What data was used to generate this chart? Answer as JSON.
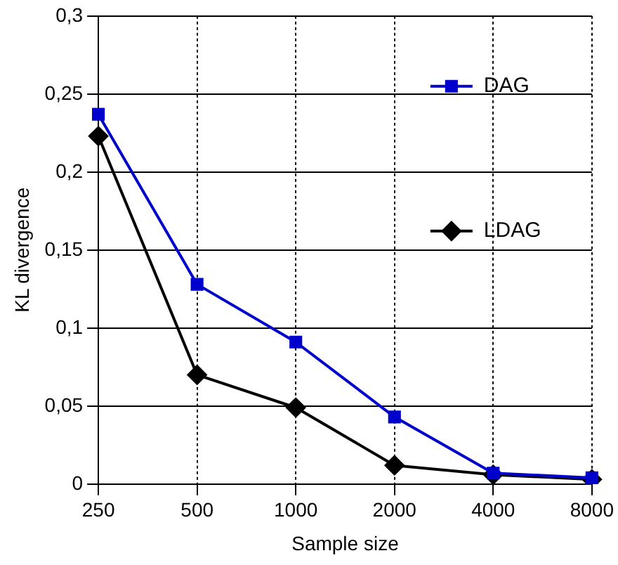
{
  "chart_data": {
    "type": "line",
    "xlabel": "Sample size",
    "ylabel": "KL divergence",
    "categories": [
      "250",
      "500",
      "1000",
      "2000",
      "4000",
      "8000"
    ],
    "series": [
      {
        "name": "DAG",
        "color": "#0000cc",
        "marker": "square",
        "values": [
          0.237,
          0.128,
          0.091,
          0.043,
          0.007,
          0.004
        ]
      },
      {
        "name": "LDAG",
        "color": "#000000",
        "marker": "diamond",
        "values": [
          0.223,
          0.07,
          0.049,
          0.012,
          0.006,
          0.003
        ]
      }
    ],
    "ylim": [
      0,
      0.3
    ],
    "yticks": [
      0,
      {
        "value": 0.05,
        "label": "0,05"
      },
      {
        "value": 0.1,
        "label": "0,1"
      },
      {
        "value": 0.15,
        "label": "0,15"
      },
      {
        "value": 0.2,
        "label": "0,2"
      },
      {
        "value": 0.25,
        "label": "0,25"
      },
      {
        "value": 0.3,
        "label": "0,3"
      }
    ],
    "grid": true,
    "legend": "right",
    "line_style": "solid"
  }
}
